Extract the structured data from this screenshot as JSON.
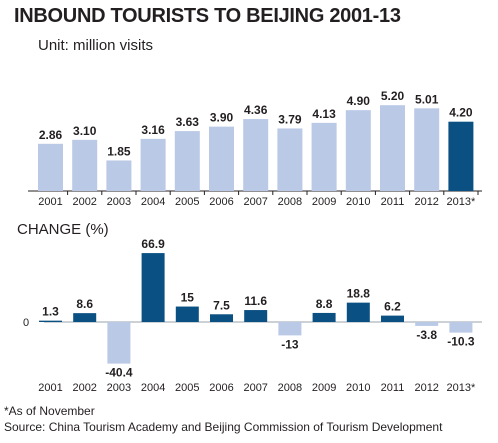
{
  "title": "INBOUND TOURISTS TO BEIJING 2001-13",
  "unit_label": "Unit: million visits",
  "change_label": "CHANGE (%)",
  "footnote": "*As of November",
  "source": "Source: China Tourism Academy and Beijing Commission of Tourism Development",
  "colors": {
    "light": "#b9c9e6",
    "dark": "#0b5082",
    "axis": "#231f20"
  },
  "chart_data": [
    {
      "type": "bar",
      "title": "INBOUND TOURISTS TO BEIJING 2001-13",
      "ylabel": "Unit: million visits",
      "categories": [
        "2001",
        "2002",
        "2003",
        "2004",
        "2005",
        "2006",
        "2007",
        "2008",
        "2009",
        "2010",
        "2011",
        "2012",
        "2013*"
      ],
      "values": [
        2.86,
        3.1,
        1.85,
        3.16,
        3.63,
        3.9,
        4.36,
        3.79,
        4.13,
        4.9,
        5.2,
        5.01,
        4.2
      ],
      "labels": [
        "2.86",
        "3.10",
        "1.85",
        "3.16",
        "3.63",
        "3.90",
        "4.36",
        "3.79",
        "4.13",
        "4.90",
        "5.20",
        "5.01",
        "4.20"
      ],
      "highlight_index": 12,
      "ylim": [
        0,
        5.5
      ],
      "grid": false
    },
    {
      "type": "bar",
      "title": "CHANGE (%)",
      "categories": [
        "2001",
        "2002",
        "2003",
        "2004",
        "2005",
        "2006",
        "2007",
        "2008",
        "2009",
        "2010",
        "2011",
        "2012",
        "2013*"
      ],
      "values": [
        1.3,
        8.6,
        -40.4,
        66.9,
        15,
        7.5,
        11.6,
        -13,
        8.8,
        18.8,
        6.2,
        -3.8,
        -10.3
      ],
      "labels": [
        "1.3",
        "8.6",
        "-40.4",
        "66.9",
        "15",
        "7.5",
        "11.6",
        "-13",
        "8.8",
        "18.8",
        "6.2",
        "-3.8",
        "-10.3"
      ],
      "zero_label": "0",
      "ylim": [
        -45,
        70
      ],
      "grid": false
    }
  ]
}
